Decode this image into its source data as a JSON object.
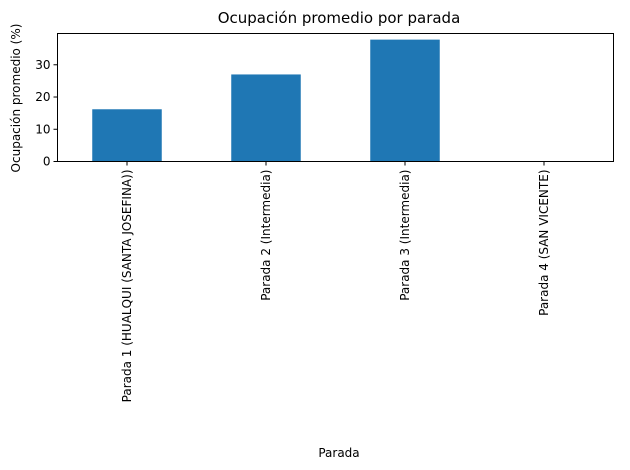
{
  "chart_data": {
    "type": "bar",
    "title": "Ocupación promedio por parada",
    "xlabel": "Parada",
    "ylabel": "Ocupación promedio (%)",
    "categories": [
      "Parada 1 (HUALQUI (SANTA JOSEFINA))",
      "Parada 2 (Intermedia)",
      "Parada 3 (Intermedia)",
      "Parada 4 (SAN VICENTE)"
    ],
    "values": [
      16.2,
      27.0,
      37.8,
      0
    ],
    "ylim": [
      0,
      39.7
    ],
    "yticks": [
      0,
      10,
      20,
      30
    ],
    "bar_color": "#1f77b4",
    "grid": false
  }
}
